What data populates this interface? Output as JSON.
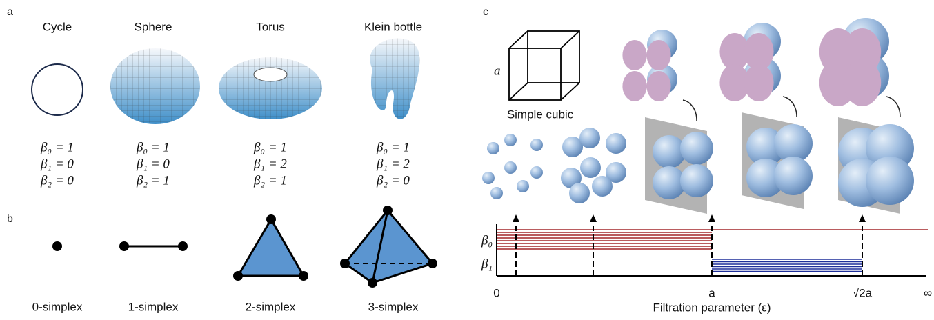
{
  "panel_labels": [
    "a",
    "b",
    "c"
  ],
  "panel_a": {
    "shapes": [
      {
        "name": "Cycle",
        "betti": [
          "β₀ = 1",
          "β₁ = 0",
          "β₂ = 0"
        ]
      },
      {
        "name": "Sphere",
        "betti": [
          "β₀ = 1",
          "β₁ = 0",
          "β₂ = 1"
        ]
      },
      {
        "name": "Torus",
        "betti": [
          "β₀ = 1",
          "β₁ = 2",
          "β₂ = 1"
        ]
      },
      {
        "name": "Klein bottle",
        "betti": [
          "β₀ = 1",
          "β₁ = 2",
          "β₂ = 0"
        ]
      }
    ]
  },
  "panel_b": {
    "simplices": [
      "0-simplex",
      "1-simplex",
      "2-simplex",
      "3-simplex"
    ]
  },
  "panel_c": {
    "cube_edge": "a",
    "cube_caption": "Simple cubic",
    "barcode": {
      "row_labels": [
        "β₀",
        "β₁"
      ],
      "xticks": [
        "0",
        "a",
        "√2a",
        "∞"
      ],
      "xlabel": "Filtration parameter (ε)"
    }
  }
}
